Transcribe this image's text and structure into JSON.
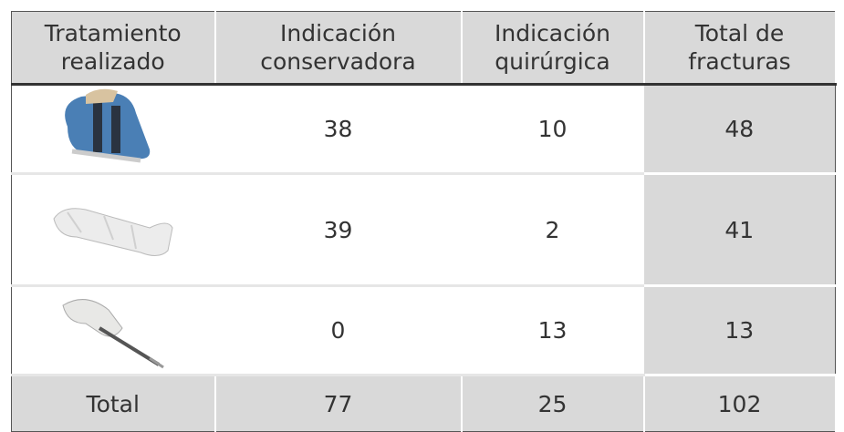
{
  "table": {
    "header": [
      [
        "Tratamiento",
        "realizado"
      ],
      [
        "Indicación",
        "conservadora"
      ],
      [
        "Indicación",
        "quirúrgica"
      ],
      [
        "Total de",
        "fracturas"
      ]
    ],
    "rows": [
      [
        38,
        10,
        48
      ],
      [
        39,
        2,
        41
      ],
      [
        0,
        13,
        13
      ]
    ],
    "total": {
      "label": "Total",
      "values": [
        77,
        25,
        102
      ]
    }
  }
}
